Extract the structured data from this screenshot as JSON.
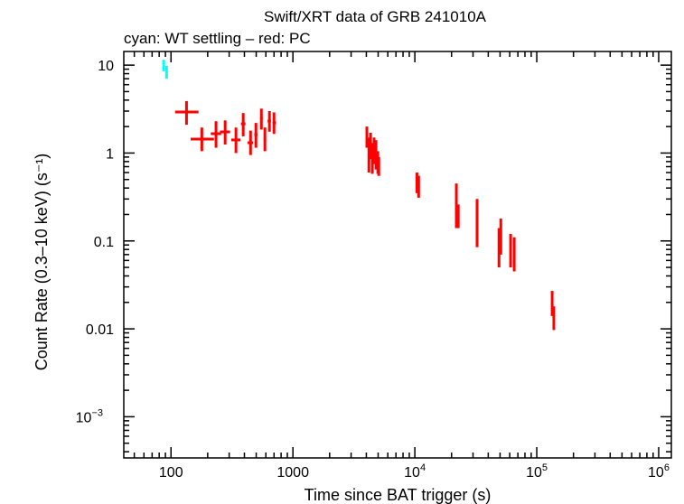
{
  "chart_data": {
    "type": "scatter",
    "title": "Swift/XRT data of GRB 241010A",
    "subtitle": "cyan: WT settling – red: PC",
    "xlabel": "Time since BAT trigger (s)",
    "ylabel": "Count Rate (0.3–10 keV) (s⁻¹)",
    "x_scale": "log",
    "y_scale": "log",
    "xlim": [
      41,
      1270000
    ],
    "ylim": [
      0.00034,
      14.3
    ],
    "x_ticks": [
      {
        "v": 100,
        "label": "100"
      },
      {
        "v": 1000,
        "label": "1000"
      },
      {
        "v": 10000,
        "label": "10",
        "sup": "4"
      },
      {
        "v": 100000,
        "label": "10",
        "sup": "5"
      },
      {
        "v": 1000000,
        "label": "10",
        "sup": "6"
      }
    ],
    "y_ticks": [
      {
        "v": 10,
        "label": "10"
      },
      {
        "v": 1,
        "label": "1"
      },
      {
        "v": 0.1,
        "label": "0.1"
      },
      {
        "v": 0.01,
        "label": "0.01"
      },
      {
        "v": 0.001,
        "label": "10",
        "sup": "−3"
      }
    ],
    "grid": false,
    "series": [
      {
        "color": "#00ffff",
        "points_fields": [
          "t",
          "t_lo",
          "t_hi",
          "rate",
          "rate_lo",
          "rate_hi"
        ],
        "points": [
          [
            87,
            86,
            88,
            9.8,
            8.5,
            11.5
          ],
          [
            92,
            91,
            93,
            8.3,
            7.0,
            9.8
          ]
        ]
      },
      {
        "color": "#ff0000",
        "points_fields": [
          "t",
          "t_lo",
          "t_hi",
          "rate",
          "rate_lo",
          "rate_hi"
        ],
        "points": [
          [
            134,
            108,
            168,
            2.93,
            2.1,
            3.9
          ],
          [
            179,
            145,
            225,
            1.44,
            1.05,
            1.95
          ],
          [
            234,
            212,
            258,
            1.66,
            1.15,
            2.3
          ],
          [
            278,
            252,
            305,
            1.74,
            1.25,
            2.35
          ],
          [
            341,
            312,
            372,
            1.41,
            1.0,
            1.95
          ],
          [
            391,
            375,
            408,
            2.15,
            1.55,
            2.85
          ],
          [
            449,
            425,
            472,
            1.31,
            0.95,
            1.8
          ],
          [
            497,
            482,
            512,
            1.62,
            1.15,
            2.2
          ],
          [
            551,
            538,
            565,
            2.48,
            1.85,
            3.2
          ],
          [
            589,
            575,
            603,
            1.44,
            1.05,
            1.95
          ],
          [
            642,
            620,
            660,
            2.31,
            1.75,
            3.0
          ],
          [
            699,
            680,
            725,
            2.21,
            1.65,
            2.9
          ],
          [
            4040,
            4000,
            4080,
            1.59,
            1.15,
            2.0
          ],
          [
            4200,
            4160,
            4240,
            0.99,
            0.6,
            1.5
          ],
          [
            4330,
            4290,
            4370,
            1.25,
            0.85,
            1.7
          ],
          [
            4480,
            4440,
            4520,
            0.88,
            0.58,
            1.3
          ],
          [
            4630,
            4590,
            4670,
            1.11,
            0.75,
            1.5
          ],
          [
            4800,
            4760,
            4840,
            0.99,
            0.65,
            1.4
          ],
          [
            4970,
            4930,
            5010,
            0.78,
            0.58,
            1.05
          ],
          [
            5060,
            5020,
            5100,
            0.7,
            0.55,
            0.9
          ],
          [
            10400,
            10300,
            10500,
            0.49,
            0.35,
            0.6
          ],
          [
            10740,
            10650,
            10830,
            0.43,
            0.31,
            0.55
          ],
          [
            21900,
            21700,
            22100,
            0.34,
            0.14,
            0.45
          ],
          [
            22700,
            22500,
            22900,
            0.19,
            0.14,
            0.26
          ],
          [
            32400,
            32200,
            32600,
            0.17,
            0.085,
            0.3
          ],
          [
            49000,
            48700,
            49300,
            0.093,
            0.05,
            0.14
          ],
          [
            50700,
            50400,
            51000,
            0.11,
            0.07,
            0.18
          ],
          [
            61000,
            60600,
            61400,
            0.074,
            0.05,
            0.12
          ],
          [
            65300,
            64900,
            65700,
            0.068,
            0.045,
            0.11
          ],
          [
            133700,
            133000,
            134400,
            0.02,
            0.014,
            0.027
          ],
          [
            138000,
            137300,
            138700,
            0.0137,
            0.0097,
            0.018
          ]
        ]
      }
    ]
  }
}
